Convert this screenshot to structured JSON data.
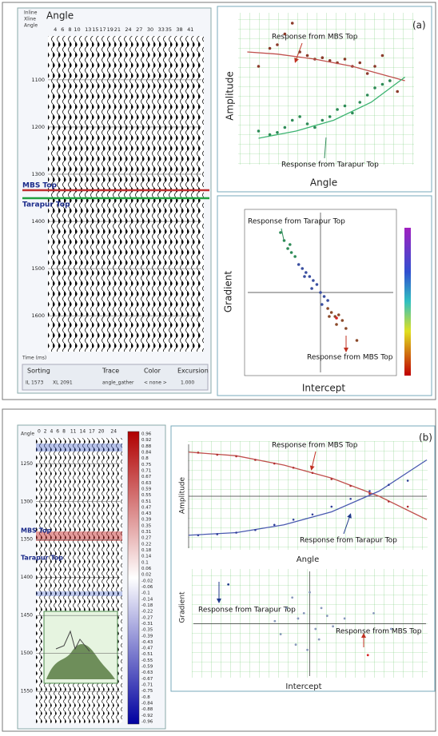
{
  "panel_a": {
    "label": "(a)",
    "gather": {
      "title": "Angle",
      "header_labels": [
        "Inline",
        "Xline"
      ],
      "angles": [
        4,
        6,
        8,
        10,
        13,
        15,
        17,
        19,
        21,
        24,
        27,
        30,
        33,
        35,
        38,
        41
      ],
      "xlim": [
        2,
        44
      ],
      "times": [
        1100,
        1200,
        1300,
        1400,
        1500,
        1600
      ],
      "ylim": [
        1007,
        1676
      ],
      "horizons": [
        "MBS Top",
        "Tarapur Top"
      ],
      "time_label": "Time (ms)",
      "controls": {
        "headers": [
          "Sorting",
          "Trace",
          "Color",
          "Excursion"
        ],
        "il": "IL 1573",
        "xl": "XL 2091",
        "trace": "angle_gather",
        "color": "< none >",
        "excursion": "1.000"
      }
    },
    "amplitude_plot": {
      "type": "scatter",
      "x_label": "Angle",
      "y_label": "Amplitude",
      "annotations": [
        "Response from MBS Top",
        "Response from Tarapur Top"
      ],
      "xlim": [
        0,
        46
      ],
      "ylim": [
        -1,
        1
      ],
      "series": [
        {
          "style": "points",
          "color": "#8b3a2a",
          "x": [
            5,
            8,
            10,
            12,
            14,
            16,
            18,
            20,
            22,
            24,
            26,
            28,
            30,
            32,
            34,
            36,
            38,
            40,
            42
          ],
          "values": [
            0.3,
            0.55,
            0.6,
            0.75,
            0.9,
            0.5,
            0.45,
            0.4,
            0.42,
            0.38,
            0.35,
            0.4,
            0.3,
            0.35,
            0.2,
            0.3,
            0.45,
            0.1,
            -0.05
          ]
        },
        {
          "style": "line",
          "color": "#c0504d",
          "x": [
            2,
            10,
            20,
            30,
            44
          ],
          "values": [
            0.5,
            0.47,
            0.4,
            0.3,
            0.1
          ]
        },
        {
          "style": "points",
          "color": "#2e8b57",
          "x": [
            5,
            8,
            10,
            12,
            14,
            16,
            18,
            20,
            22,
            24,
            26,
            28,
            30,
            32,
            34,
            36,
            38,
            40
          ],
          "values": [
            -0.6,
            -0.65,
            -0.62,
            -0.55,
            -0.45,
            -0.4,
            -0.5,
            -0.55,
            -0.45,
            -0.4,
            -0.3,
            -0.25,
            -0.35,
            -0.2,
            -0.1,
            0.0,
            0.05,
            0.1
          ]
        },
        {
          "style": "line",
          "color": "#3cb371",
          "x": [
            5,
            15,
            25,
            35,
            44
          ],
          "values": [
            -0.7,
            -0.6,
            -0.45,
            -0.2,
            0.15
          ]
        }
      ]
    },
    "gradient_plot": {
      "type": "scatter",
      "x_label": "Intercept",
      "y_label": "Gradient",
      "annotations": [
        "Response from Tarapur Top",
        "Response from MBS Top"
      ],
      "xlim": [
        -1,
        1
      ],
      "ylim": [
        -1,
        1
      ],
      "series": [
        {
          "style": "points",
          "color": "#2e8b57",
          "x": [
            -0.55,
            -0.5,
            -0.45,
            -0.4,
            -0.42,
            -0.35
          ],
          "values": [
            0.75,
            0.65,
            0.55,
            0.5,
            0.6,
            0.45
          ]
        },
        {
          "style": "points",
          "color": "#3a4fa0",
          "x": [
            -0.3,
            -0.25,
            -0.2,
            -0.15,
            -0.1,
            -0.05,
            0,
            0.05,
            0.1,
            -0.22,
            -0.12,
            0.02
          ],
          "values": [
            0.35,
            0.3,
            0.25,
            0.2,
            0.15,
            0.1,
            0,
            -0.05,
            -0.1,
            0.2,
            0.05,
            -0.15
          ]
        },
        {
          "style": "points",
          "color": "#8b4a2a",
          "x": [
            0.1,
            0.15,
            0.2,
            0.25,
            0.3,
            0.12,
            0.22,
            0.35,
            0.5
          ],
          "values": [
            -0.2,
            -0.25,
            -0.3,
            -0.28,
            -0.35,
            -0.3,
            -0.4,
            -0.45,
            -0.6
          ]
        },
        {
          "style": "points",
          "color": "#d62020",
          "x": [
            0.22
          ],
          "values": [
            -0.32
          ]
        }
      ]
    }
  },
  "panel_b": {
    "label": "(b)",
    "gather": {
      "title": "Angle",
      "angles": [
        0,
        2,
        4,
        6,
        8,
        11,
        14,
        17,
        20,
        24
      ],
      "xlim": [
        -1,
        26
      ],
      "times": [
        1250,
        1300,
        1350,
        1400,
        1450,
        1500,
        1550
      ],
      "ylim": [
        1216,
        1592
      ],
      "horizons": [
        "MBS Top",
        "Tarapur Top"
      ]
    },
    "colorbar": [
      0.96,
      0.92,
      0.88,
      0.84,
      0.8,
      0.75,
      0.71,
      0.67,
      0.63,
      0.59,
      0.55,
      0.51,
      0.47,
      0.43,
      0.39,
      0.35,
      0.31,
      0.27,
      0.22,
      0.18,
      0.14,
      0.1,
      0.06,
      0.02,
      -0.02,
      -0.06,
      -0.1,
      -0.14,
      -0.18,
      -0.22,
      -0.27,
      -0.31,
      -0.35,
      -0.39,
      -0.43,
      -0.47,
      -0.51,
      -0.55,
      -0.59,
      -0.63,
      -0.67,
      -0.71,
      -0.75,
      -0.8,
      -0.84,
      -0.88,
      -0.92,
      -0.96
    ],
    "amplitude_plot": {
      "type": "scatter",
      "x_label": "Angle",
      "y_label": "Amplitude",
      "annotations": [
        "Response from MBS Top",
        "Response from Tarapur Top"
      ],
      "xlim": [
        0,
        50
      ],
      "ylim": [
        -1,
        1
      ],
      "series": [
        {
          "style": "line",
          "color": "#c0504d",
          "x": [
            0,
            10,
            20,
            30,
            40,
            50
          ],
          "values": [
            0.85,
            0.78,
            0.6,
            0.35,
            0.0,
            -0.45
          ]
        },
        {
          "style": "points",
          "color": "#b03030",
          "x": [
            2,
            6,
            10,
            14,
            18,
            22,
            26,
            30,
            34,
            38,
            42,
            46
          ],
          "values": [
            0.84,
            0.8,
            0.77,
            0.7,
            0.63,
            0.55,
            0.45,
            0.33,
            0.2,
            0.05,
            -0.1,
            -0.2
          ]
        },
        {
          "style": "line",
          "color": "#4a5ab0",
          "x": [
            0,
            10,
            20,
            30,
            40,
            50
          ],
          "values": [
            -0.75,
            -0.7,
            -0.55,
            -0.3,
            0.1,
            0.7
          ]
        },
        {
          "style": "points",
          "color": "#30409a",
          "x": [
            2,
            6,
            10,
            14,
            18,
            22,
            26,
            30,
            34,
            38,
            42,
            46
          ],
          "values": [
            -0.75,
            -0.73,
            -0.7,
            -0.65,
            -0.55,
            -0.45,
            -0.35,
            -0.2,
            -0.05,
            0.1,
            0.22,
            0.3
          ]
        }
      ]
    },
    "gradient_plot": {
      "type": "scatter",
      "x_label": "Intercept",
      "y_label": "Gradient",
      "annotations": [
        "Response from Tarapur Top",
        "Response from MBS Top"
      ],
      "xlim": [
        -1,
        1
      ],
      "ylim": [
        -1,
        1
      ],
      "series": [
        {
          "style": "points",
          "color": "#8899bb",
          "x": [
            -0.2,
            -0.15,
            -0.1,
            -0.05,
            0,
            0.05,
            0.1,
            -0.25,
            -0.12,
            0.08,
            0.15,
            -0.3,
            0.2,
            -0.02,
            0.3,
            0.55,
            0.7
          ],
          "values": [
            0.3,
            0.5,
            0.1,
            0.2,
            0.6,
            -0.1,
            0.3,
            -0.2,
            -0.4,
            -0.3,
            0.15,
            0.05,
            -0.05,
            -0.5,
            0.1,
            0.2,
            -0.1
          ]
        },
        {
          "style": "points",
          "color": "#1f3a8a",
          "x": [
            -0.7
          ],
          "values": [
            0.75
          ]
        },
        {
          "style": "points",
          "color": "#d62020",
          "x": [
            0.5
          ],
          "values": [
            -0.6
          ]
        }
      ]
    }
  }
}
